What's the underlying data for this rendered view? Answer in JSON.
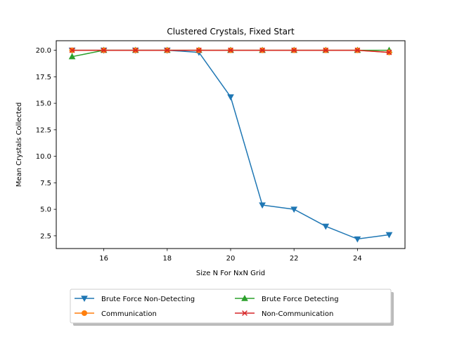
{
  "chart_data": {
    "type": "line",
    "title": "Clustered Crystals, Fixed Start",
    "xlabel": "Size N For NxN Grid",
    "ylabel": "Mean Crystals Collected",
    "x": [
      15,
      16,
      17,
      18,
      19,
      20,
      21,
      22,
      23,
      24,
      25
    ],
    "xlim": [
      14.5,
      25.5
    ],
    "ylim": [
      1.3,
      20.9
    ],
    "xticks": [
      16,
      18,
      20,
      22,
      24
    ],
    "xtick_labels": [
      "16",
      "18",
      "20",
      "22",
      "24"
    ],
    "yticks": [
      2.5,
      5.0,
      7.5,
      10.0,
      12.5,
      15.0,
      17.5,
      20.0
    ],
    "ytick_labels": [
      "2.5",
      "5.0",
      "7.5",
      "10.0",
      "12.5",
      "15.0",
      "17.5",
      "20.0"
    ],
    "grid": false,
    "legend_placement": "below",
    "series": [
      {
        "name": "Brute Force Non-Detecting",
        "color": "#1f77b4",
        "marker": "triangle-down",
        "values": [
          20.0,
          20.0,
          20.0,
          20.0,
          19.8,
          15.6,
          5.4,
          5.0,
          3.4,
          2.2,
          2.6
        ]
      },
      {
        "name": "Brute Force Detecting",
        "color": "#2ca02c",
        "marker": "triangle-up",
        "values": [
          19.4,
          20.0,
          20.0,
          20.0,
          20.0,
          20.0,
          20.0,
          20.0,
          20.0,
          20.0,
          20.0
        ]
      },
      {
        "name": "Communication",
        "color": "#ff7f0e",
        "marker": "circle",
        "values": [
          20.0,
          20.0,
          20.0,
          20.0,
          20.0,
          20.0,
          20.0,
          20.0,
          20.0,
          20.0,
          19.8
        ]
      },
      {
        "name": "Non-Communication",
        "color": "#d62728",
        "marker": "x",
        "values": [
          20.0,
          20.0,
          20.0,
          20.0,
          20.0,
          20.0,
          20.0,
          20.0,
          20.0,
          20.0,
          19.8
        ]
      }
    ],
    "legend_order": [
      "Brute Force Non-Detecting",
      "Brute Force Detecting",
      "Communication",
      "Non-Communication"
    ]
  }
}
